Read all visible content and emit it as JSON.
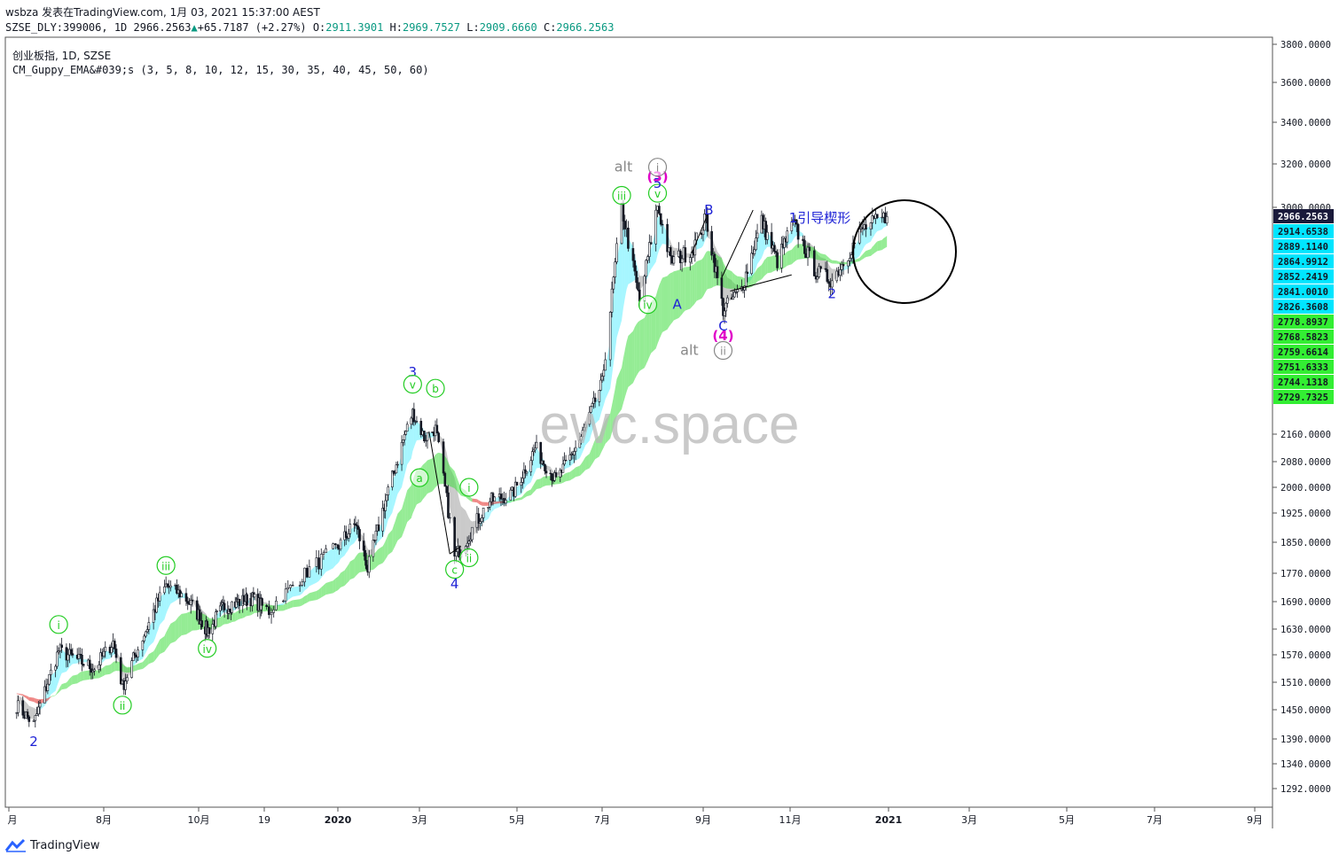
{
  "header": {
    "publish_line": "wsbza 发表在TradingView.com, 1月 03, 2021 15:37:00 AEST",
    "symbol_line": {
      "symbol": "SZSE_DLY:399006, 1D 2966.2563",
      "change": "+65.7187 (+2.27%)",
      "o_label": "O:",
      "o": "2911.3901",
      "h_label": "H:",
      "h": "2969.7527",
      "l_label": "L:",
      "l": "2909.6660",
      "c_label": "C:",
      "c": "2966.2563"
    }
  },
  "legend": {
    "title": "创业板指, 1D, SZSE",
    "indicator": "CM_Guppy_EMA&#039;s (3, 5, 8, 10, 12, 15, 30, 35, 40, 45, 50, 60)"
  },
  "watermark": "ewc.space",
  "footer": {
    "brand": "TradingView"
  },
  "colors": {
    "candle": "#131722",
    "short_ema": "#00e5ff",
    "long_ema": "#3ddc3d",
    "bear_ema": "#e53935",
    "neutral_ema": "#8a8a8a",
    "wave_blue": "#1e22d6",
    "wave_green": "#22cc22",
    "wave_magenta": "#e000c8",
    "wave_gray": "#888888"
  },
  "chart_data": {
    "type": "candlestick",
    "title": "创业板指, 1D, SZSE",
    "y_axis": {
      "position": "right",
      "ticks": [
        "3800.0000",
        "3600.0000",
        "3400.0000",
        "3200.0000",
        "3000.0000",
        "2160.0000",
        "2080.0000",
        "2000.0000",
        "1925.0000",
        "1850.0000",
        "1770.0000",
        "1690.0000",
        "1630.0000",
        "1570.0000",
        "1510.0000",
        "1450.0000",
        "1390.0000",
        "1340.0000",
        "1292.0000"
      ]
    },
    "x_axis": {
      "ticks": [
        "月",
        "8月",
        "10月",
        "19",
        "2020",
        "3月",
        "5月",
        "7月",
        "9月",
        "11月",
        "2021",
        "3月",
        "5月",
        "7月",
        "9月"
      ]
    },
    "last_price": "2966.2563",
    "ema_short_labels": [
      "2914.6538",
      "2889.1140",
      "2864.9912",
      "2852.2419",
      "2841.0010",
      "2826.3608"
    ],
    "ema_long_labels": [
      "2778.8937",
      "2768.5823",
      "2759.6614",
      "2751.6333",
      "2744.1318",
      "2729.7325"
    ],
    "price_path": [
      [
        "2019-06-06",
        1460
      ],
      [
        "2019-06-17",
        1420
      ],
      [
        "2019-07-03",
        1580
      ],
      [
        "2019-07-26",
        1540
      ],
      [
        "2019-08-07",
        1600
      ],
      [
        "2019-08-13",
        1500
      ],
      [
        "2019-08-20",
        1560
      ],
      [
        "2019-09-10",
        1735
      ],
      [
        "2019-09-20",
        1710
      ],
      [
        "2019-10-09",
        1625
      ],
      [
        "2019-10-25",
        1680
      ],
      [
        "2019-11-20",
        1700
      ],
      [
        "2019-12-03",
        1670
      ],
      [
        "2019-12-20",
        1780
      ],
      [
        "2020-01-14",
        1900
      ],
      [
        "2020-01-23",
        1780
      ],
      [
        "2020-02-25",
        2240
      ],
      [
        "2020-03-04",
        2150
      ],
      [
        "2020-03-11",
        2180
      ],
      [
        "2020-03-23",
        1810
      ],
      [
        "2020-04-01",
        1870
      ],
      [
        "2020-04-14",
        1960
      ],
      [
        "2020-04-28",
        1980
      ],
      [
        "2020-05-14",
        2120
      ],
      [
        "2020-05-29",
        2020
      ],
      [
        "2020-06-16",
        2150
      ],
      [
        "2020-07-01",
        2350
      ],
      [
        "2020-07-13",
        3000
      ],
      [
        "2020-07-24",
        2650
      ],
      [
        "2020-08-04",
        3010
      ],
      [
        "2020-08-12",
        2800
      ],
      [
        "2020-08-25",
        2840
      ],
      [
        "2020-09-03",
        2960
      ],
      [
        "2020-09-15",
        2620
      ],
      [
        "2020-09-28",
        2700
      ],
      [
        "2020-10-12",
        2950
      ],
      [
        "2020-10-23",
        2800
      ],
      [
        "2020-11-03",
        2940
      ],
      [
        "2020-11-17",
        2760
      ],
      [
        "2020-11-27",
        2730
      ],
      [
        "2020-12-16",
        2920
      ],
      [
        "2020-12-31",
        2966
      ]
    ],
    "wave_labels": [
      {
        "text": "2",
        "date": "2019-06-17",
        "price": 1385,
        "color": "blue",
        "circle": false
      },
      {
        "text": "i",
        "date": "2019-07-03",
        "price": 1640,
        "color": "green",
        "circle": true
      },
      {
        "text": "ii",
        "date": "2019-08-13",
        "price": 1460,
        "color": "green",
        "circle": true
      },
      {
        "text": "iii",
        "date": "2019-09-10",
        "price": 1790,
        "color": "green",
        "circle": true
      },
      {
        "text": "iv",
        "date": "2019-10-09",
        "price": 1585,
        "color": "green",
        "circle": true
      },
      {
        "text": "3",
        "date": "2020-02-25",
        "price": 2390,
        "color": "blue",
        "circle": false
      },
      {
        "text": "v",
        "date": "2020-02-25",
        "price": 2345,
        "color": "green",
        "circle": true
      },
      {
        "text": "b",
        "date": "2020-03-11",
        "price": 2330,
        "color": "green",
        "circle": true
      },
      {
        "text": "a",
        "date": "2020-03-01",
        "price": 2030,
        "color": "green",
        "circle": true
      },
      {
        "text": "i",
        "date": "2020-04-01",
        "price": 2000,
        "color": "green",
        "circle": true
      },
      {
        "text": "ii",
        "date": "2020-04-01",
        "price": 1810,
        "color": "green",
        "circle": true
      },
      {
        "text": "c",
        "date": "2020-03-23",
        "price": 1780,
        "color": "green",
        "circle": true
      },
      {
        "text": "4",
        "date": "2020-03-23",
        "price": 1740,
        "color": "blue",
        "circle": false
      },
      {
        "text": "iii",
        "date": "2020-07-13",
        "price": 3055,
        "color": "green",
        "circle": true
      },
      {
        "text": "v",
        "date": "2020-08-04",
        "price": 3065,
        "color": "green",
        "circle": true
      },
      {
        "text": "5",
        "date": "2020-08-04",
        "price": 3110,
        "color": "blue",
        "circle": false
      },
      {
        "text": "(3)",
        "date": "2020-08-04",
        "price": 3140,
        "color": "magenta",
        "circle": false
      },
      {
        "text": "alt",
        "date": "2020-07-26",
        "price": 3185,
        "color": "gray",
        "circle": false
      },
      {
        "text": "i",
        "date": "2020-08-04",
        "price": 3185,
        "color": "gray",
        "circle": true
      },
      {
        "text": "iv",
        "date": "2020-07-29",
        "price": 2640,
        "color": "green",
        "circle": true
      },
      {
        "text": "A",
        "date": "2020-08-16",
        "price": 2640,
        "color": "blue",
        "circle": false
      },
      {
        "text": "B",
        "date": "2020-09-05",
        "price": 2990,
        "color": "blue",
        "circle": false
      },
      {
        "text": "C",
        "date": "2020-09-15",
        "price": 2560,
        "color": "blue",
        "circle": false
      },
      {
        "text": "(4)",
        "date": "2020-09-15",
        "price": 2525,
        "color": "magenta",
        "circle": false
      },
      {
        "text": "alt",
        "date": "2020-09-05",
        "price": 2470,
        "color": "gray",
        "circle": false
      },
      {
        "text": "ii",
        "date": "2020-09-15",
        "price": 2470,
        "color": "gray",
        "circle": true
      },
      {
        "text": "2",
        "date": "2020-11-27",
        "price": 2680,
        "color": "blue",
        "circle": false
      },
      {
        "text": "1引导楔形",
        "date": "2020-11-15",
        "price": 2960,
        "color": "blue",
        "circle": false
      }
    ]
  }
}
